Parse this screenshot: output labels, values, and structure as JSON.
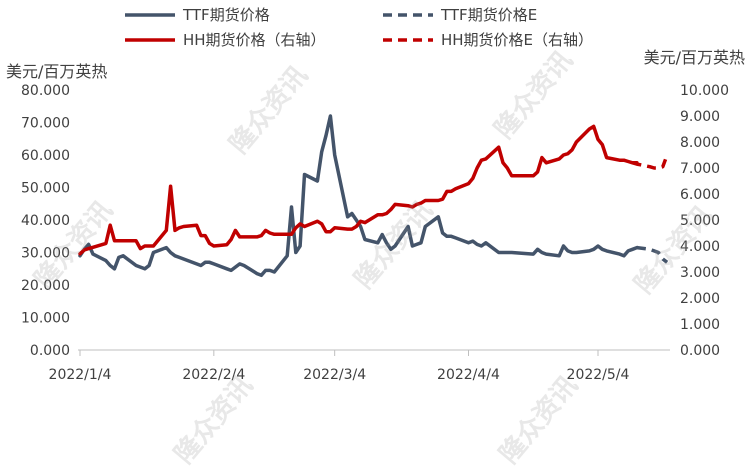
{
  "chart_data": {
    "type": "line",
    "left_axis": {
      "unit_label": "美元/百万英热",
      "ylim": [
        0,
        80
      ],
      "ticks": [
        "0.000",
        "10.000",
        "20.000",
        "30.000",
        "40.000",
        "50.000",
        "60.000",
        "70.000",
        "80.000"
      ],
      "tick_values": [
        0,
        10,
        20,
        30,
        40,
        50,
        60,
        70,
        80
      ]
    },
    "right_axis": {
      "unit_label": "美元/百万英热",
      "ylim": [
        0,
        10
      ],
      "ticks": [
        "0.000",
        "1.000",
        "2.000",
        "3.000",
        "4.000",
        "5.000",
        "6.000",
        "7.000",
        "8.000",
        "9.000",
        "10.000"
      ],
      "tick_values": [
        0,
        1,
        2,
        3,
        4,
        5,
        6,
        7,
        8,
        9,
        10
      ]
    },
    "x_ticks": [
      "2022/1/4",
      "2022/2/4",
      "2022/3/4",
      "2022/4/4",
      "2022/5/4"
    ],
    "x_tick_dates": [
      "2022-01-04",
      "2022-02-04",
      "2022-03-04",
      "2022-04-04",
      "2022-05-04"
    ],
    "x_range": [
      "2022-01-04",
      "2022-05-20"
    ],
    "grid": false,
    "legend": {
      "placement": "top",
      "entries": [
        {
          "label": "TTF期货价格",
          "series": "ttf"
        },
        {
          "label": "TTF期货价格E",
          "series": "ttf_e"
        },
        {
          "label": "HH期货价格（右轴）",
          "series": "hh"
        },
        {
          "label": "HH期货价格E（右轴）",
          "series": "hh_e"
        }
      ]
    },
    "colors": {
      "ttf": "#44546A",
      "hh": "#C00000"
    },
    "series": [
      {
        "name": "TTF期货价格",
        "key": "ttf",
        "axis": "left",
        "style": "solid",
        "x": [
          "2022-01-04",
          "2022-01-05",
          "2022-01-06",
          "2022-01-07",
          "2022-01-10",
          "2022-01-11",
          "2022-01-12",
          "2022-01-13",
          "2022-01-14",
          "2022-01-17",
          "2022-01-18",
          "2022-01-19",
          "2022-01-20",
          "2022-01-21",
          "2022-01-24",
          "2022-01-25",
          "2022-01-26",
          "2022-01-27",
          "2022-01-28",
          "2022-01-31",
          "2022-02-01",
          "2022-02-02",
          "2022-02-03",
          "2022-02-04",
          "2022-02-07",
          "2022-02-08",
          "2022-02-09",
          "2022-02-10",
          "2022-02-11",
          "2022-02-14",
          "2022-02-15",
          "2022-02-16",
          "2022-02-17",
          "2022-02-18",
          "2022-02-21",
          "2022-02-22",
          "2022-02-23",
          "2022-02-24",
          "2022-02-25",
          "2022-02-28",
          "2022-03-01",
          "2022-03-02",
          "2022-03-03",
          "2022-03-04",
          "2022-03-07",
          "2022-03-08",
          "2022-03-09",
          "2022-03-10",
          "2022-03-11",
          "2022-03-14",
          "2022-03-15",
          "2022-03-16",
          "2022-03-17",
          "2022-03-18",
          "2022-03-21",
          "2022-03-22",
          "2022-03-23",
          "2022-03-24",
          "2022-03-25",
          "2022-03-28",
          "2022-03-29",
          "2022-03-30",
          "2022-03-31",
          "2022-04-01",
          "2022-04-04",
          "2022-04-05",
          "2022-04-06",
          "2022-04-07",
          "2022-04-08",
          "2022-04-11",
          "2022-04-12",
          "2022-04-13",
          "2022-04-14",
          "2022-04-19",
          "2022-04-20",
          "2022-04-21",
          "2022-04-22",
          "2022-04-25",
          "2022-04-26",
          "2022-04-27",
          "2022-04-28",
          "2022-04-29",
          "2022-05-02",
          "2022-05-03",
          "2022-05-04",
          "2022-05-05",
          "2022-05-06",
          "2022-05-09",
          "2022-05-10",
          "2022-05-11",
          "2022-05-12",
          "2022-05-13"
        ],
        "values": [
          29.0,
          31.0,
          32.5,
          29.5,
          27.5,
          26.0,
          25.0,
          28.5,
          29.0,
          26.0,
          25.5,
          25.0,
          26.0,
          30.0,
          31.5,
          30.0,
          29.0,
          28.5,
          28.0,
          26.5,
          26.0,
          27.0,
          27.0,
          26.5,
          25.0,
          24.5,
          25.5,
          26.5,
          26.0,
          23.5,
          23.0,
          24.5,
          24.5,
          24.0,
          29.0,
          44.0,
          30.0,
          32.0,
          54.0,
          52.0,
          61.0,
          66.0,
          72.0,
          60.0,
          41.0,
          42.0,
          40.0,
          38.0,
          34.0,
          33.0,
          35.5,
          33.0,
          31.0,
          32.0,
          38.0,
          32.0,
          32.5,
          33.0,
          38.0,
          41.0,
          36.0,
          35.0,
          35.0,
          34.5,
          33.0,
          33.5,
          32.5,
          32.0,
          33.0,
          30.0,
          30.0,
          30.0,
          30.0,
          29.5,
          31.0,
          30.0,
          29.5,
          29.0,
          32.0,
          30.5,
          30.0,
          30.0,
          30.5,
          31.0,
          32.0,
          31.0,
          30.5,
          29.5,
          29.0,
          30.5,
          31.0,
          31.5
        ]
      },
      {
        "name": "TTF期货价格E",
        "key": "ttf_e",
        "axis": "left",
        "style": "dashed",
        "x": [
          "2022-05-13",
          "2022-05-16",
          "2022-05-17",
          "2022-05-18",
          "2022-05-19",
          "2022-05-20"
        ],
        "values": [
          31.5,
          31.0,
          30.5,
          30.0,
          28.0,
          27.0
        ]
      },
      {
        "name": "HH期货价格（右轴）",
        "key": "hh",
        "axis": "right",
        "style": "solid",
        "x": [
          "2022-01-04",
          "2022-01-05",
          "2022-01-06",
          "2022-01-07",
          "2022-01-10",
          "2022-01-11",
          "2022-01-12",
          "2022-01-13",
          "2022-01-14",
          "2022-01-17",
          "2022-01-18",
          "2022-01-19",
          "2022-01-20",
          "2022-01-21",
          "2022-01-24",
          "2022-01-25",
          "2022-01-26",
          "2022-01-27",
          "2022-01-28",
          "2022-01-31",
          "2022-02-01",
          "2022-02-02",
          "2022-02-03",
          "2022-02-04",
          "2022-02-07",
          "2022-02-08",
          "2022-02-09",
          "2022-02-10",
          "2022-02-11",
          "2022-02-14",
          "2022-02-15",
          "2022-02-16",
          "2022-02-17",
          "2022-02-18",
          "2022-02-21",
          "2022-02-22",
          "2022-02-23",
          "2022-02-24",
          "2022-02-25",
          "2022-02-28",
          "2022-03-01",
          "2022-03-02",
          "2022-03-03",
          "2022-03-04",
          "2022-03-07",
          "2022-03-08",
          "2022-03-09",
          "2022-03-10",
          "2022-03-11",
          "2022-03-14",
          "2022-03-15",
          "2022-03-16",
          "2022-03-17",
          "2022-03-18",
          "2022-03-21",
          "2022-03-22",
          "2022-03-23",
          "2022-03-24",
          "2022-03-25",
          "2022-03-28",
          "2022-03-29",
          "2022-03-30",
          "2022-03-31",
          "2022-04-01",
          "2022-04-04",
          "2022-04-05",
          "2022-04-06",
          "2022-04-07",
          "2022-04-08",
          "2022-04-11",
          "2022-04-12",
          "2022-04-13",
          "2022-04-14",
          "2022-04-19",
          "2022-04-20",
          "2022-04-21",
          "2022-04-22",
          "2022-04-25",
          "2022-04-26",
          "2022-04-27",
          "2022-04-28",
          "2022-04-29",
          "2022-05-02",
          "2022-05-03",
          "2022-05-04",
          "2022-05-05",
          "2022-05-06",
          "2022-05-09",
          "2022-05-10",
          "2022-05-11",
          "2022-05-12",
          "2022-05-13"
        ],
        "values": [
          3.7,
          3.85,
          3.9,
          3.95,
          4.1,
          4.8,
          4.2,
          4.2,
          4.2,
          4.2,
          3.9,
          4.0,
          4.0,
          4.0,
          4.6,
          6.3,
          4.6,
          4.7,
          4.75,
          4.8,
          4.4,
          4.4,
          4.1,
          4.0,
          4.05,
          4.25,
          4.6,
          4.35,
          4.35,
          4.35,
          4.4,
          4.6,
          4.5,
          4.45,
          4.45,
          4.45,
          4.7,
          4.85,
          4.75,
          4.95,
          4.85,
          4.55,
          4.55,
          4.7,
          4.65,
          4.65,
          4.75,
          4.95,
          4.9,
          5.2,
          5.2,
          5.25,
          5.4,
          5.6,
          5.55,
          5.5,
          5.6,
          5.65,
          5.75,
          5.75,
          5.8,
          6.1,
          6.1,
          6.2,
          6.4,
          6.6,
          7.0,
          7.3,
          7.35,
          7.8,
          7.2,
          7.0,
          6.7,
          6.7,
          6.85,
          7.4,
          7.2,
          7.35,
          7.5,
          7.55,
          7.7,
          8.0,
          8.5,
          8.6,
          8.1,
          7.9,
          7.4,
          7.3,
          7.3,
          7.25,
          7.2,
          7.2
        ]
      },
      {
        "name": "HH期货价格E（右轴）",
        "key": "hh_e",
        "axis": "right",
        "style": "dashed",
        "x": [
          "2022-05-12",
          "2022-05-13",
          "2022-05-16",
          "2022-05-17",
          "2022-05-18",
          "2022-05-19",
          "2022-05-20"
        ],
        "values": [
          7.2,
          7.15,
          7.05,
          7.0,
          7.0,
          7.05,
          7.5
        ]
      }
    ]
  }
}
